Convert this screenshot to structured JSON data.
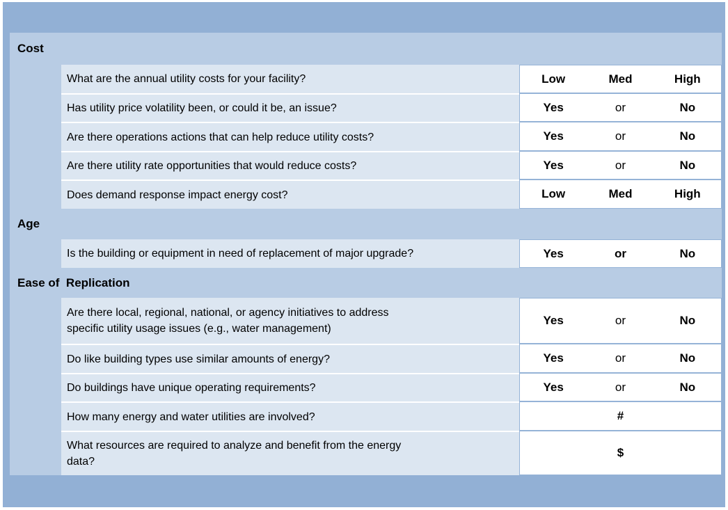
{
  "colors": {
    "frame": "#92B0D5",
    "section_bg": "#B8CCE4",
    "question_bg": "#DCE6F1",
    "answer_bg": "#FFFFFF",
    "divider": "#95B3D7",
    "text": "#000000"
  },
  "sections": [
    {
      "title": "Cost",
      "rows": [
        {
          "question": "What are the annual utility costs for your facility?",
          "answers": [
            "Low",
            "Med",
            "High"
          ]
        },
        {
          "question": "Has utility price volatility been, or could it be, an issue?",
          "answers": [
            "Yes",
            "or",
            "No"
          ]
        },
        {
          "question": "Are there operations actions that can help reduce utility costs?",
          "answers": [
            "Yes",
            "or",
            "No"
          ]
        },
        {
          "question": "Are there utility rate opportunities that would reduce costs?",
          "answers": [
            "Yes",
            "or",
            "No"
          ]
        },
        {
          "question": "Does demand response impact energy cost?",
          "answers": [
            "Low",
            "Med",
            "High"
          ]
        }
      ]
    },
    {
      "title": "Age",
      "rows": [
        {
          "question": "Is the building or equipment in need of replacement of major upgrade?",
          "answers": [
            "Yes",
            "or",
            "No"
          ]
        }
      ]
    },
    {
      "title": "Ease of  Replication",
      "rows": [
        {
          "question": "Are there local, regional, national, or agency initiatives to address\nspecific utility usage issues (e.g., water management)",
          "answers": [
            "Yes",
            "or",
            "No"
          ]
        },
        {
          "question": "Do like building types use similar amounts of energy?",
          "answers": [
            "Yes",
            "or",
            "No"
          ]
        },
        {
          "question": "Do buildings have unique operating requirements?",
          "answers": [
            "Yes",
            "or",
            "No"
          ]
        },
        {
          "question": "How many energy and water utilities are involved?",
          "answers": [
            "#"
          ]
        },
        {
          "question": "What resources are required to analyze and benefit from the energy\ndata?",
          "answers": [
            "$"
          ]
        }
      ]
    }
  ]
}
